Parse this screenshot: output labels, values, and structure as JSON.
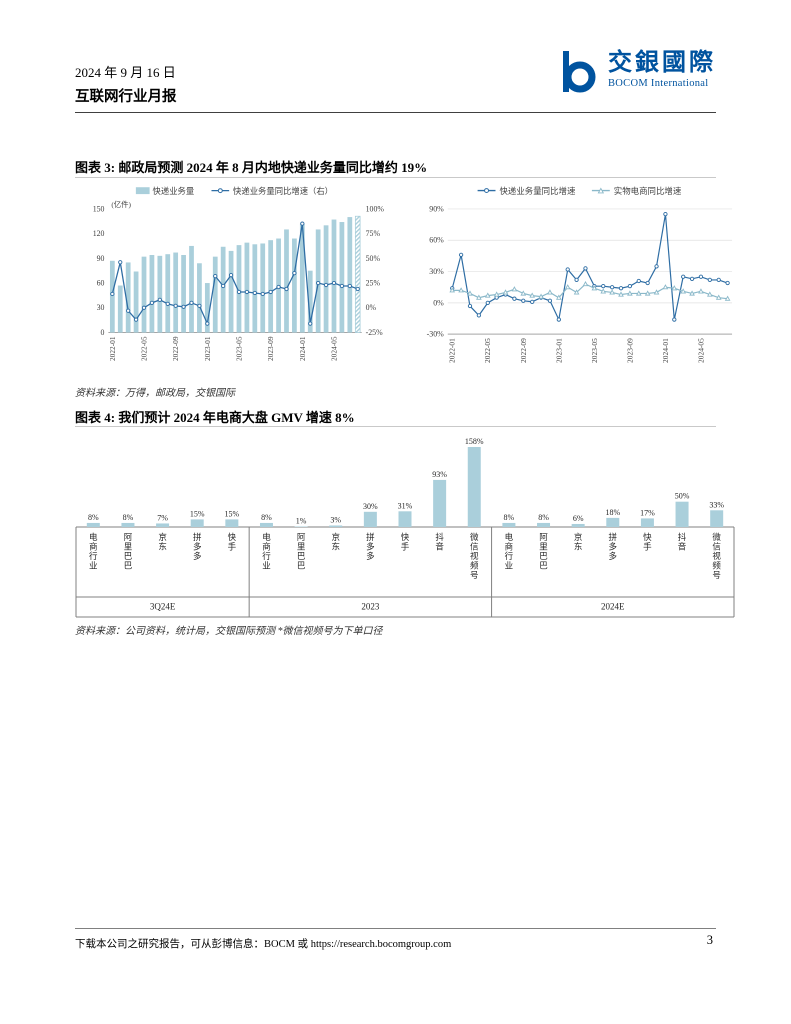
{
  "header": {
    "date": "2024 年 9 月 16 日",
    "title": "互联网行业月报"
  },
  "logo": {
    "cn": "交銀國際",
    "en": "BOCOM International"
  },
  "colors": {
    "bar": "#aacfdb",
    "line_primary": "#2e6da4",
    "line_secondary": "#8ab8c9",
    "logo": "#00539f",
    "grid": "#e0e0e0",
    "axis": "#a6a6a6",
    "frame": "#808080"
  },
  "figure3": {
    "title": "图表 3: 邮政局预测 2024 年 8 月内地快递业务量同比增约 19%",
    "source": "资料来源：万得，邮政局，交银国际"
  },
  "figure4": {
    "title": "图表 4: 我们预计 2024 年电商大盘 GMV 增速 8%",
    "source": "资料来源：公司资料，统计局，交银国际预测 *微信视频号为下单口径"
  },
  "footer": {
    "prefix": "下载本公司之研究报告，可从彭博信息：BOCM 或 ",
    "url": "https://research.bocomgroup.com",
    "page": "3"
  },
  "chart_data": [
    {
      "id": "figure3-left",
      "type": "bar+line",
      "unit_label": "(亿件)",
      "legend": [
        "快递业务量",
        "快递业务量同比增速（右）"
      ],
      "x": [
        "2022-01",
        "2022-02",
        "2022-03",
        "2022-04",
        "2022-05",
        "2022-06",
        "2022-07",
        "2022-08",
        "2022-09",
        "2022-10",
        "2022-11",
        "2022-12",
        "2023-01",
        "2023-02",
        "2023-03",
        "2023-04",
        "2023-05",
        "2023-06",
        "2023-07",
        "2023-08",
        "2023-09",
        "2023-10",
        "2023-11",
        "2023-12",
        "2024-01",
        "2024-02",
        "2024-03",
        "2024-04",
        "2024-05",
        "2024-06",
        "2024-07",
        "2024-08"
      ],
      "x_ticks": [
        "2022-01",
        "2022-05",
        "2022-09",
        "2023-01",
        "2023-05",
        "2023-09",
        "2024-01",
        "2024-05"
      ],
      "bars": {
        "name": "快递业务量",
        "forecast_last": true,
        "values": [
          87,
          57,
          85,
          74,
          92,
          94,
          93,
          95,
          97,
          94,
          105,
          84,
          60,
          92,
          104,
          99,
          106,
          109,
          107,
          108,
          112,
          114,
          125,
          114,
          132,
          75,
          125,
          130,
          137,
          134,
          140,
          141
        ]
      },
      "line": {
        "name": "快递业务量同比增速（右）",
        "values": [
          14,
          46,
          -3,
          -12,
          0,
          5,
          8,
          4,
          2,
          1,
          5,
          2,
          -16,
          32,
          22,
          33,
          16,
          16,
          15,
          14,
          16,
          21,
          19,
          35,
          85,
          -16,
          25,
          23,
          25,
          22,
          22,
          19
        ]
      },
      "left_axis": {
        "min": 0,
        "max": 150,
        "ticks": [
          0,
          30,
          60,
          90,
          120,
          150
        ]
      },
      "right_axis": {
        "min": -25,
        "max": 100,
        "ticks": [
          -25,
          0,
          25,
          50,
          75,
          100
        ]
      }
    },
    {
      "id": "figure3-right",
      "type": "line",
      "legend": [
        "快递业务量同比增速",
        "实物电商同比增速"
      ],
      "x": [
        "2022-01",
        "2022-02",
        "2022-03",
        "2022-04",
        "2022-05",
        "2022-06",
        "2022-07",
        "2022-08",
        "2022-09",
        "2022-10",
        "2022-11",
        "2022-12",
        "2023-01",
        "2023-02",
        "2023-03",
        "2023-04",
        "2023-05",
        "2023-06",
        "2023-07",
        "2023-08",
        "2023-09",
        "2023-10",
        "2023-11",
        "2023-12",
        "2024-01",
        "2024-02",
        "2024-03",
        "2024-04",
        "2024-05",
        "2024-06",
        "2024-07",
        "2024-08"
      ],
      "x_ticks": [
        "2022-01",
        "2022-05",
        "2022-09",
        "2023-01",
        "2023-05",
        "2023-09",
        "2024-01",
        "2024-05"
      ],
      "series": [
        {
          "name": "快递业务量同比增速",
          "marker": "circle",
          "values": [
            14,
            46,
            -3,
            -12,
            0,
            5,
            8,
            4,
            2,
            1,
            5,
            2,
            -16,
            32,
            22,
            33,
            16,
            16,
            15,
            14,
            16,
            21,
            19,
            35,
            85,
            -16,
            25,
            23,
            25,
            22,
            22,
            19
          ]
        },
        {
          "name": "实物电商同比增速",
          "marker": "triangle",
          "values": [
            12,
            12,
            9,
            5,
            7,
            8,
            10,
            13,
            9,
            7,
            6,
            10,
            5,
            15,
            10,
            18,
            14,
            11,
            10,
            8,
            9,
            9,
            9,
            10,
            15,
            14,
            11,
            9,
            11,
            8,
            5,
            4
          ]
        }
      ],
      "y_axis": {
        "min": -30,
        "max": 90,
        "ticks": [
          -30,
          0,
          30,
          60,
          90
        ]
      }
    },
    {
      "id": "figure4",
      "type": "bar",
      "value_suffix": "%",
      "groups": [
        {
          "label": "3Q24E",
          "categories": [
            "电商行业",
            "阿里巴巴",
            "京东",
            "拼多多",
            "快手"
          ],
          "values": [
            8,
            8,
            7,
            15,
            15
          ]
        },
        {
          "label": "2023",
          "categories": [
            "电商行业",
            "阿里巴巴",
            "京东",
            "拼多多",
            "快手",
            "抖音",
            "微信视频号"
          ],
          "values": [
            8,
            1,
            3,
            30,
            31,
            93,
            158
          ]
        },
        {
          "label": "2024E",
          "categories": [
            "电商行业",
            "阿里巴巴",
            "京东",
            "拼多多",
            "快手",
            "抖音",
            "微信视频号"
          ],
          "values": [
            8,
            8,
            6,
            18,
            17,
            50,
            33
          ]
        }
      ]
    }
  ]
}
